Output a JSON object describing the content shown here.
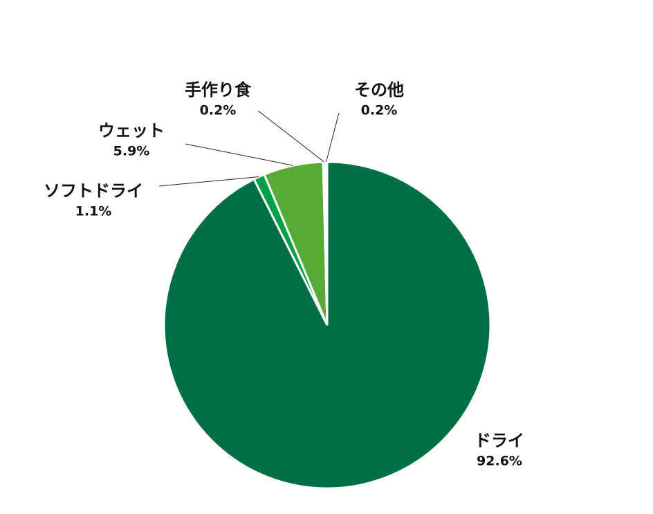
{
  "chart_data": {
    "type": "pie",
    "categories": [
      "ドライ",
      "ソフトドライ",
      "ウェット",
      "手作り食",
      "その他"
    ],
    "values": [
      92.6,
      1.1,
      5.9,
      0.2,
      0.2
    ],
    "value_labels": [
      "92.6%",
      "1.1%",
      "5.9%",
      "0.2%",
      "0.2%"
    ],
    "colors": [
      "#006f44",
      "#00a046",
      "#55ab35",
      "#c9e3b8",
      "#eef6e8"
    ]
  }
}
